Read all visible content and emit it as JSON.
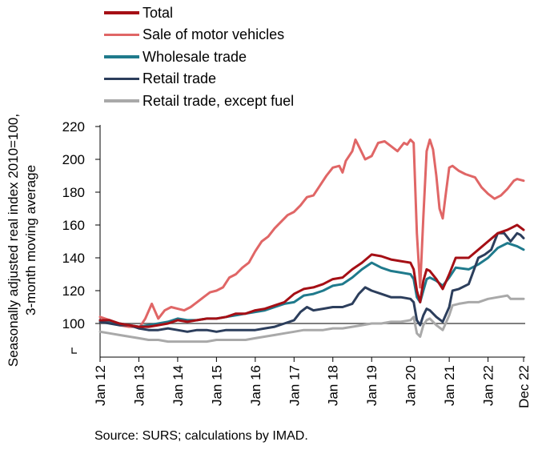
{
  "chart_data": {
    "type": "line",
    "ylabel_line1": "Seasonally adjusted real index 2010=100,",
    "ylabel_line2": "3-month moving average",
    "ylim": [
      80,
      220
    ],
    "y_ticks": [
      100,
      120,
      140,
      160,
      180,
      200,
      220
    ],
    "x_tick_labels": [
      "Jan 12",
      "Jan 13",
      "Jan 14",
      "Jan 15",
      "Jan 16",
      "Jan 17",
      "Jan 18",
      "Jan 19",
      "Jan 20",
      "Jan 21",
      "Jan 22",
      "Dec 22"
    ],
    "x_tick_months": [
      0,
      12,
      24,
      36,
      48,
      60,
      72,
      84,
      96,
      108,
      120,
      131
    ],
    "x_start": "Jan 12",
    "x_end": "Dec 22",
    "reference_line": 100,
    "legend_position": "top-left",
    "source": "Source: SURS; calculations by IMAD.",
    "series": [
      {
        "name": "Total",
        "color": "#a50f15",
        "points": [
          [
            0,
            102
          ],
          [
            3,
            102
          ],
          [
            6,
            100
          ],
          [
            9,
            99
          ],
          [
            12,
            98
          ],
          [
            15,
            98
          ],
          [
            18,
            99
          ],
          [
            21,
            100
          ],
          [
            24,
            102
          ],
          [
            27,
            101
          ],
          [
            30,
            102
          ],
          [
            33,
            103
          ],
          [
            36,
            103
          ],
          [
            39,
            104
          ],
          [
            42,
            106
          ],
          [
            45,
            106
          ],
          [
            48,
            108
          ],
          [
            51,
            109
          ],
          [
            54,
            111
          ],
          [
            57,
            113
          ],
          [
            60,
            118
          ],
          [
            63,
            121
          ],
          [
            66,
            122
          ],
          [
            69,
            124
          ],
          [
            72,
            127
          ],
          [
            75,
            128
          ],
          [
            78,
            133
          ],
          [
            81,
            137
          ],
          [
            84,
            142
          ],
          [
            87,
            141
          ],
          [
            90,
            139
          ],
          [
            93,
            138
          ],
          [
            96,
            137
          ],
          [
            97,
            133
          ],
          [
            98,
            120
          ],
          [
            99,
            113
          ],
          [
            100,
            126
          ],
          [
            101,
            133
          ],
          [
            102,
            132
          ],
          [
            104,
            127
          ],
          [
            106,
            121
          ],
          [
            108,
            130
          ],
          [
            110,
            140
          ],
          [
            114,
            140
          ],
          [
            117,
            145
          ],
          [
            120,
            150
          ],
          [
            123,
            155
          ],
          [
            126,
            157
          ],
          [
            129,
            160
          ],
          [
            131,
            157
          ]
        ]
      },
      {
        "name": "Sale of motor vehicles",
        "color": "#e06666",
        "points": [
          [
            0,
            104
          ],
          [
            3,
            102
          ],
          [
            6,
            99
          ],
          [
            9,
            98
          ],
          [
            11,
            98
          ],
          [
            12,
            97
          ],
          [
            14,
            103
          ],
          [
            16,
            112
          ],
          [
            18,
            103
          ],
          [
            20,
            108
          ],
          [
            22,
            110
          ],
          [
            24,
            109
          ],
          [
            26,
            108
          ],
          [
            28,
            110
          ],
          [
            30,
            113
          ],
          [
            32,
            116
          ],
          [
            34,
            119
          ],
          [
            36,
            120
          ],
          [
            38,
            122
          ],
          [
            40,
            128
          ],
          [
            42,
            130
          ],
          [
            44,
            134
          ],
          [
            46,
            137
          ],
          [
            48,
            144
          ],
          [
            50,
            150
          ],
          [
            52,
            153
          ],
          [
            54,
            158
          ],
          [
            56,
            162
          ],
          [
            58,
            166
          ],
          [
            60,
            168
          ],
          [
            62,
            172
          ],
          [
            64,
            177
          ],
          [
            66,
            178
          ],
          [
            68,
            184
          ],
          [
            70,
            190
          ],
          [
            72,
            195
          ],
          [
            74,
            196
          ],
          [
            75,
            192
          ],
          [
            76,
            199
          ],
          [
            78,
            205
          ],
          [
            79,
            212
          ],
          [
            80,
            208
          ],
          [
            82,
            200
          ],
          [
            84,
            202
          ],
          [
            86,
            210
          ],
          [
            88,
            211
          ],
          [
            90,
            208
          ],
          [
            92,
            205
          ],
          [
            94,
            210
          ],
          [
            95,
            209
          ],
          [
            96,
            212
          ],
          [
            97,
            210
          ],
          [
            98,
            155
          ],
          [
            99,
            122
          ],
          [
            100,
            165
          ],
          [
            101,
            205
          ],
          [
            102,
            212
          ],
          [
            103,
            206
          ],
          [
            104,
            190
          ],
          [
            105,
            170
          ],
          [
            106,
            164
          ],
          [
            107,
            180
          ],
          [
            108,
            195
          ],
          [
            109,
            196
          ],
          [
            111,
            193
          ],
          [
            113,
            191
          ],
          [
            116,
            189
          ],
          [
            118,
            183
          ],
          [
            120,
            179
          ],
          [
            122,
            176
          ],
          [
            124,
            178
          ],
          [
            126,
            182
          ],
          [
            128,
            187
          ],
          [
            129,
            188
          ],
          [
            131,
            187
          ]
        ]
      },
      {
        "name": "Wholesale trade",
        "color": "#1f7a8c",
        "points": [
          [
            0,
            102
          ],
          [
            3,
            101
          ],
          [
            6,
            100
          ],
          [
            9,
            99
          ],
          [
            12,
            98
          ],
          [
            15,
            99
          ],
          [
            18,
            100
          ],
          [
            21,
            101
          ],
          [
            24,
            103
          ],
          [
            27,
            102
          ],
          [
            30,
            102
          ],
          [
            33,
            103
          ],
          [
            36,
            103
          ],
          [
            39,
            104
          ],
          [
            42,
            105
          ],
          [
            45,
            106
          ],
          [
            48,
            107
          ],
          [
            51,
            108
          ],
          [
            54,
            110
          ],
          [
            57,
            112
          ],
          [
            60,
            113
          ],
          [
            63,
            117
          ],
          [
            66,
            118
          ],
          [
            69,
            120
          ],
          [
            72,
            123
          ],
          [
            75,
            124
          ],
          [
            78,
            128
          ],
          [
            81,
            133
          ],
          [
            84,
            137
          ],
          [
            87,
            134
          ],
          [
            90,
            132
          ],
          [
            93,
            131
          ],
          [
            96,
            130
          ],
          [
            97,
            127
          ],
          [
            98,
            116
          ],
          [
            99,
            113
          ],
          [
            100,
            120
          ],
          [
            101,
            127
          ],
          [
            102,
            128
          ],
          [
            104,
            126
          ],
          [
            106,
            123
          ],
          [
            108,
            128
          ],
          [
            110,
            134
          ],
          [
            114,
            133
          ],
          [
            117,
            136
          ],
          [
            120,
            140
          ],
          [
            123,
            146
          ],
          [
            126,
            149
          ],
          [
            129,
            147
          ],
          [
            131,
            145
          ]
        ]
      },
      {
        "name": "Retail trade",
        "color": "#2c3e5c",
        "points": [
          [
            0,
            101
          ],
          [
            3,
            100
          ],
          [
            6,
            99
          ],
          [
            9,
            99
          ],
          [
            12,
            97
          ],
          [
            15,
            96
          ],
          [
            18,
            96
          ],
          [
            21,
            97
          ],
          [
            24,
            96
          ],
          [
            27,
            95
          ],
          [
            30,
            96
          ],
          [
            33,
            96
          ],
          [
            36,
            95
          ],
          [
            39,
            96
          ],
          [
            42,
            96
          ],
          [
            45,
            96
          ],
          [
            48,
            96
          ],
          [
            51,
            97
          ],
          [
            54,
            98
          ],
          [
            57,
            100
          ],
          [
            60,
            102
          ],
          [
            62,
            107
          ],
          [
            64,
            110
          ],
          [
            66,
            108
          ],
          [
            69,
            109
          ],
          [
            72,
            110
          ],
          [
            75,
            110
          ],
          [
            78,
            112
          ],
          [
            80,
            118
          ],
          [
            82,
            122
          ],
          [
            84,
            120
          ],
          [
            87,
            118
          ],
          [
            90,
            116
          ],
          [
            93,
            116
          ],
          [
            96,
            115
          ],
          [
            97,
            113
          ],
          [
            98,
            102
          ],
          [
            99,
            99
          ],
          [
            100,
            105
          ],
          [
            101,
            109
          ],
          [
            102,
            108
          ],
          [
            104,
            104
          ],
          [
            106,
            101
          ],
          [
            108,
            110
          ],
          [
            109,
            120
          ],
          [
            111,
            121
          ],
          [
            114,
            124
          ],
          [
            117,
            140
          ],
          [
            119,
            142
          ],
          [
            121,
            145
          ],
          [
            123,
            155
          ],
          [
            125,
            155
          ],
          [
            127,
            150
          ],
          [
            129,
            155
          ],
          [
            130,
            154
          ],
          [
            131,
            152
          ]
        ]
      },
      {
        "name": "Retail trade, except fuel",
        "color": "#a9a9a9",
        "points": [
          [
            0,
            95
          ],
          [
            3,
            94
          ],
          [
            6,
            93
          ],
          [
            9,
            92
          ],
          [
            12,
            91
          ],
          [
            15,
            90
          ],
          [
            18,
            90
          ],
          [
            21,
            89
          ],
          [
            24,
            89
          ],
          [
            27,
            89
          ],
          [
            30,
            89
          ],
          [
            33,
            89
          ],
          [
            36,
            90
          ],
          [
            39,
            90
          ],
          [
            42,
            90
          ],
          [
            45,
            90
          ],
          [
            48,
            91
          ],
          [
            51,
            92
          ],
          [
            54,
            93
          ],
          [
            57,
            94
          ],
          [
            60,
            95
          ],
          [
            63,
            96
          ],
          [
            66,
            96
          ],
          [
            69,
            96
          ],
          [
            72,
            97
          ],
          [
            75,
            97
          ],
          [
            78,
            98
          ],
          [
            81,
            99
          ],
          [
            84,
            100
          ],
          [
            87,
            100
          ],
          [
            90,
            101
          ],
          [
            93,
            101
          ],
          [
            96,
            102
          ],
          [
            97,
            104
          ],
          [
            98,
            94
          ],
          [
            99,
            92
          ],
          [
            100,
            99
          ],
          [
            101,
            102
          ],
          [
            102,
            103
          ],
          [
            104,
            99
          ],
          [
            106,
            96
          ],
          [
            108,
            105
          ],
          [
            109,
            111
          ],
          [
            111,
            112
          ],
          [
            114,
            113
          ],
          [
            117,
            113
          ],
          [
            120,
            115
          ],
          [
            123,
            116
          ],
          [
            126,
            117
          ],
          [
            127,
            115
          ],
          [
            129,
            115
          ],
          [
            131,
            115
          ]
        ]
      }
    ]
  }
}
